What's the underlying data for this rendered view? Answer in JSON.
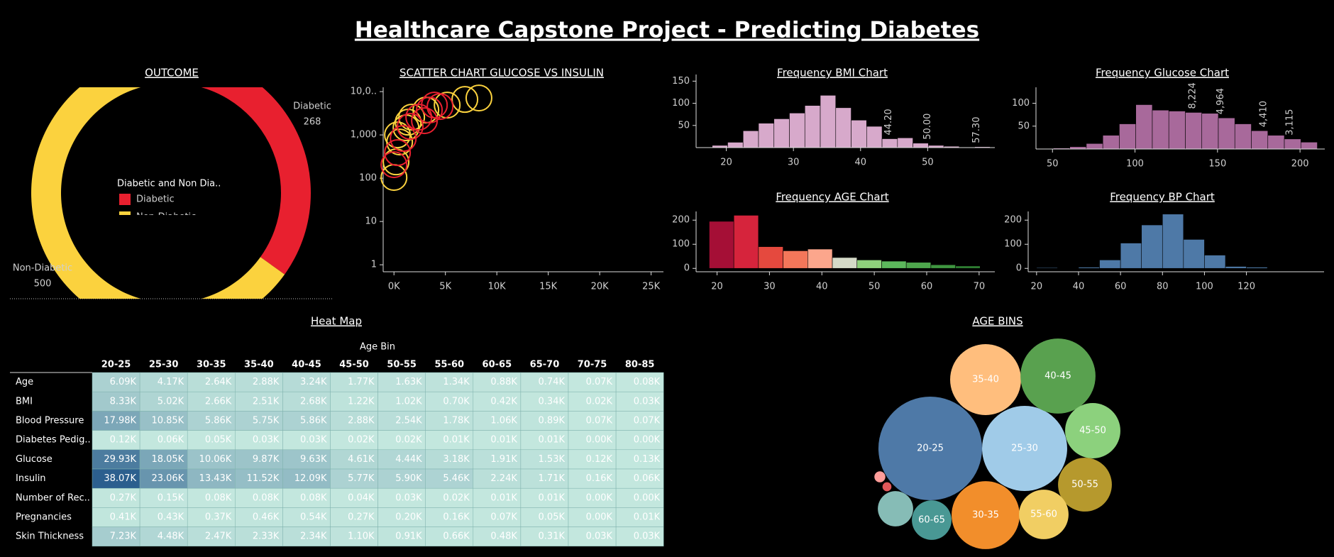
{
  "title": "Healthcare Capstone Project - Predicting Diabetes",
  "chart_data": [
    {
      "type": "pie",
      "title": "OUTCOME",
      "categories": [
        "Diabetic",
        "Non-Diabetic"
      ],
      "values": [
        268,
        500
      ],
      "colors": [
        "#e8202f",
        "#fbd23e"
      ],
      "legend_title": "Diabetic and Non Dia.."
    },
    {
      "type": "scatter",
      "title": "SCATTER CHART GLUCOSE VS INSULIN",
      "log_y": true,
      "series": [
        {
          "color": "#fbd23e",
          "x": [
            0,
            200,
            550,
            1170,
            1720,
            3100,
            5170,
            6890,
            8260,
            340,
            1380
          ],
          "y": [
            104,
            238,
            686,
            1460,
            2570,
            3750,
            4890,
            6600,
            7120,
            1000,
            1970
          ]
        },
        {
          "color": "#e8202f",
          "x": [
            0,
            340,
            900,
            1580,
            2410,
            3440,
            4480,
            2960,
            3930
          ],
          "y": [
            205,
            389,
            828,
            1570,
            2570,
            3750,
            4530,
            2130,
            4890
          ]
        }
      ],
      "xlim": [
        -1050,
        26200
      ],
      "ylim": [
        0.69,
        12600
      ],
      "xticks": [
        {
          "value": 0,
          "label": "0K"
        },
        {
          "value": 5000,
          "label": "5K"
        },
        {
          "value": 10000,
          "label": "10K"
        },
        {
          "value": 15000,
          "label": "15K"
        },
        {
          "value": 20000,
          "label": "20K"
        },
        {
          "value": 25000,
          "label": "25K"
        }
      ],
      "yticks": [
        1,
        10,
        100,
        {
          "value": 1000,
          "label": "1,000"
        },
        {
          "value": 10000,
          "label": "10,0.."
        }
      ]
    },
    {
      "type": "histogram",
      "title": "Frequency BMI Chart",
      "color": "#d7a9cb",
      "bins": [
        17.9,
        20.2,
        22.5,
        24.8,
        27.1,
        29.4,
        31.7,
        34,
        36.3,
        38.6,
        40.9,
        43.2,
        45.5,
        47.8,
        50.1,
        52.4,
        54.7,
        57,
        59.3
      ],
      "values": [
        5,
        12,
        38,
        55,
        65,
        78,
        95,
        118,
        90,
        62,
        48,
        20,
        22,
        10,
        5,
        3,
        1,
        2
      ],
      "xlim": [
        15.5,
        60
      ],
      "ylim": [
        0,
        165
      ],
      "xticks": [
        20,
        30,
        40,
        50
      ],
      "yticks": [
        50,
        100,
        150
      ],
      "annotations": [
        {
          "x": 44.2,
          "label": "44.20"
        },
        {
          "x": 50,
          "label": "50.00"
        },
        {
          "x": 57.3,
          "label": "57.30"
        }
      ]
    },
    {
      "type": "histogram",
      "title": "Frequency Glucose Chart",
      "color": "#a8699b",
      "bins": [
        40.5,
        50.5,
        60.5,
        70.5,
        80.5,
        90.5,
        100.5,
        110.5,
        120.5,
        130.5,
        140.5,
        150.5,
        160.5,
        170.5,
        180.5,
        190.5,
        200.5,
        210.5
      ],
      "values": [
        1,
        2,
        5,
        12,
        30,
        55,
        97,
        85,
        83,
        80,
        78,
        68,
        55,
        40,
        30,
        22,
        15
      ],
      "xlim": [
        40,
        215
      ],
      "ylim": [
        0,
        135
      ],
      "xticks": [
        50,
        100,
        150,
        200
      ],
      "yticks": [
        50,
        100
      ],
      "annotations": [
        {
          "x": 135,
          "label": "8,224"
        },
        {
          "x": 152,
          "label": "4,964"
        },
        {
          "x": 178,
          "label": "4,410"
        },
        {
          "x": 194,
          "label": "3,115"
        }
      ]
    },
    {
      "type": "histogram",
      "title": "Frequency AGE Chart",
      "colors": [
        "#a50f36",
        "#d6243c",
        "#e5493e",
        "#f4775a",
        "#fca68c",
        "#d5dac8",
        "#8fd07c",
        "#5cb85c",
        "#4ea64d",
        "#3f9640",
        "#2e7d32"
      ],
      "bins": [
        18.5,
        23.2,
        27.9,
        32.6,
        37.3,
        42,
        46.7,
        51.4,
        56.1,
        60.8,
        65.5,
        70.2
      ],
      "values": [
        195,
        220,
        90,
        73,
        80,
        45,
        35,
        30,
        25,
        15,
        10
      ],
      "xlim": [
        16,
        73
      ],
      "ylim": [
        -14,
        236
      ],
      "xticks": [
        20,
        30,
        40,
        50,
        60,
        70
      ],
      "yticks": [
        0,
        100,
        200
      ]
    },
    {
      "type": "histogram",
      "title": "Frequency BP Chart",
      "color": "#4e79a7",
      "bins": [
        20,
        30,
        40,
        50,
        60,
        70,
        80,
        90,
        100,
        110,
        120,
        130
      ],
      "values": [
        3,
        0,
        5,
        35,
        105,
        180,
        225,
        120,
        55,
        8,
        5
      ],
      "xlim": [
        16,
        157
      ],
      "ylim": [
        -14,
        236
      ],
      "xticks": [
        20,
        40,
        60,
        80,
        100,
        120
      ],
      "yticks": [
        0,
        100,
        200
      ]
    },
    {
      "type": "heatmap",
      "title": "Heat Map",
      "x_title": "Age Bin",
      "color_range": [
        "#c3e7de",
        "#2c5f8e"
      ],
      "columns": [
        "20-25",
        "25-30",
        "30-35",
        "35-40",
        "40-45",
        "45-50",
        "50-55",
        "55-60",
        "60-65",
        "65-70",
        "70-75",
        "80-85"
      ],
      "rows": [
        "Age",
        "BMI",
        "Blood Pressure",
        "Diabetes Pedig..",
        "Glucose",
        "Insulin",
        "Number of Rec..",
        "Pregnancies",
        "Skin Thickness"
      ],
      "values": [
        [
          6.09,
          4.17,
          2.64,
          2.88,
          3.24,
          1.77,
          1.63,
          1.34,
          0.88,
          0.74,
          0.07,
          0.08
        ],
        [
          8.33,
          5.02,
          2.66,
          2.51,
          2.68,
          1.22,
          1.02,
          0.7,
          0.42,
          0.34,
          0.02,
          0.03
        ],
        [
          17.98,
          10.85,
          5.86,
          5.75,
          5.86,
          2.88,
          2.54,
          1.78,
          1.06,
          0.89,
          0.07,
          0.07
        ],
        [
          0.12,
          0.06,
          0.05,
          0.03,
          0.03,
          0.02,
          0.02,
          0.01,
          0.01,
          0.01,
          0,
          0
        ],
        [
          29.93,
          18.05,
          10.06,
          9.87,
          9.63,
          4.61,
          4.44,
          3.18,
          1.91,
          1.53,
          0.12,
          0.13
        ],
        [
          38.07,
          23.06,
          13.43,
          11.52,
          12.09,
          5.77,
          5.9,
          5.46,
          2.24,
          1.71,
          0.16,
          0.06
        ],
        [
          0.27,
          0.15,
          0.08,
          0.08,
          0.08,
          0.04,
          0.03,
          0.02,
          0.01,
          0.01,
          0,
          0
        ],
        [
          0.41,
          0.43,
          0.37,
          0.46,
          0.54,
          0.27,
          0.2,
          0.16,
          0.07,
          0.05,
          0,
          0.01
        ],
        [
          7.23,
          4.48,
          2.47,
          2.33,
          2.34,
          1.1,
          0.91,
          0.66,
          0.48,
          0.31,
          0.03,
          0.03
        ]
      ],
      "value_labels": [
        [
          "6.09K",
          "4.17K",
          "2.64K",
          "2.88K",
          "3.24K",
          "1.77K",
          "1.63K",
          "1.34K",
          "0.88K",
          "0.74K",
          "0.07K",
          "0.08K"
        ],
        [
          "8.33K",
          "5.02K",
          "2.66K",
          "2.51K",
          "2.68K",
          "1.22K",
          "1.02K",
          "0.70K",
          "0.42K",
          "0.34K",
          "0.02K",
          "0.03K"
        ],
        [
          "17.98K",
          "10.85K",
          "5.86K",
          "5.75K",
          "5.86K",
          "2.88K",
          "2.54K",
          "1.78K",
          "1.06K",
          "0.89K",
          "0.07K",
          "0.07K"
        ],
        [
          "0.12K",
          "0.06K",
          "0.05K",
          "0.03K",
          "0.03K",
          "0.02K",
          "0.02K",
          "0.01K",
          "0.01K",
          "0.01K",
          "0.00K",
          "0.00K"
        ],
        [
          "29.93K",
          "18.05K",
          "10.06K",
          "9.87K",
          "9.63K",
          "4.61K",
          "4.44K",
          "3.18K",
          "1.91K",
          "1.53K",
          "0.12K",
          "0.13K"
        ],
        [
          "38.07K",
          "23.06K",
          "13.43K",
          "11.52K",
          "12.09K",
          "5.77K",
          "5.90K",
          "5.46K",
          "2.24K",
          "1.71K",
          "0.16K",
          "0.06K"
        ],
        [
          "0.27K",
          "0.15K",
          "0.08K",
          "0.08K",
          "0.08K",
          "0.04K",
          "0.03K",
          "0.02K",
          "0.01K",
          "0.01K",
          "0.00K",
          "0.00K"
        ],
        [
          "0.41K",
          "0.43K",
          "0.37K",
          "0.46K",
          "0.54K",
          "0.27K",
          "0.20K",
          "0.16K",
          "0.07K",
          "0.05K",
          "0.00K",
          "0.01K"
        ],
        [
          "7.23K",
          "4.48K",
          "2.47K",
          "2.33K",
          "2.34K",
          "1.10K",
          "0.91K",
          "0.66K",
          "0.48K",
          "0.31K",
          "0.03K",
          "0.03K"
        ]
      ]
    },
    {
      "type": "bubble",
      "title": "AGE BINS",
      "categories": [
        "20-25",
        "25-30",
        "30-35",
        "35-40",
        "40-45",
        "45-50",
        "50-55",
        "55-60",
        "60-65",
        null,
        null,
        null
      ],
      "values": [
        267,
        180,
        115,
        125,
        140,
        76,
        72,
        61,
        39,
        31,
        3,
        2
      ],
      "colors": [
        "#4e79a7",
        "#a0cbe8",
        "#f28e2b",
        "#ffbe7d",
        "#59a14f",
        "#8cd17d",
        "#b6992d",
        "#f1ce63",
        "#499894",
        "#86bcb6",
        "#ff9d9a",
        "#e15759"
      ]
    }
  ]
}
